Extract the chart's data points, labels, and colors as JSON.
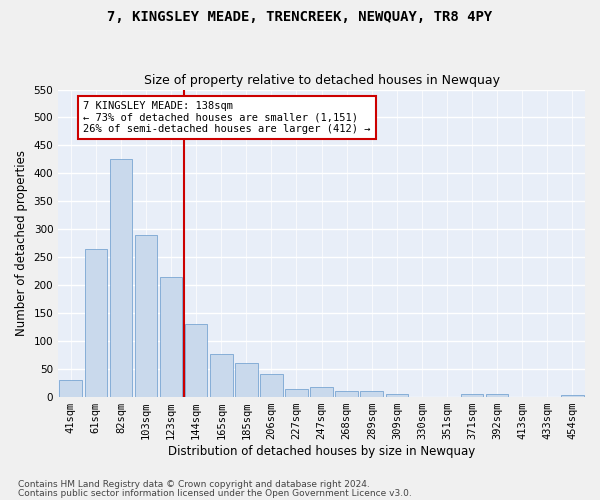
{
  "title": "7, KINGSLEY MEADE, TRENCREEK, NEWQUAY, TR8 4PY",
  "subtitle": "Size of property relative to detached houses in Newquay",
  "xlabel": "Distribution of detached houses by size in Newquay",
  "ylabel": "Number of detached properties",
  "bar_color": "#c9d9ec",
  "bar_edgecolor": "#6699cc",
  "categories": [
    "41sqm",
    "61sqm",
    "82sqm",
    "103sqm",
    "123sqm",
    "144sqm",
    "165sqm",
    "185sqm",
    "206sqm",
    "227sqm",
    "247sqm",
    "268sqm",
    "289sqm",
    "309sqm",
    "330sqm",
    "351sqm",
    "371sqm",
    "392sqm",
    "413sqm",
    "433sqm",
    "454sqm"
  ],
  "values": [
    30,
    265,
    425,
    290,
    215,
    130,
    76,
    60,
    40,
    13,
    17,
    10,
    10,
    4,
    0,
    0,
    5,
    5,
    0,
    0,
    2
  ],
  "ylim": [
    0,
    550
  ],
  "yticks": [
    0,
    50,
    100,
    150,
    200,
    250,
    300,
    350,
    400,
    450,
    500,
    550
  ],
  "vline_index": 4.5,
  "vline_color": "#cc0000",
  "annotation_box_text": "7 KINGSLEY MEADE: 138sqm\n← 73% of detached houses are smaller (1,151)\n26% of semi-detached houses are larger (412) →",
  "footer_line1": "Contains HM Land Registry data © Crown copyright and database right 2024.",
  "footer_line2": "Contains public sector information licensed under the Open Government Licence v3.0.",
  "fig_bg_color": "#f0f0f0",
  "plot_bg_color": "#e8eef8",
  "grid_color": "#ffffff",
  "title_fontsize": 10,
  "subtitle_fontsize": 9,
  "xlabel_fontsize": 8.5,
  "ylabel_fontsize": 8.5,
  "tick_fontsize": 7.5,
  "footer_fontsize": 6.5,
  "annotation_fontsize": 7.5
}
